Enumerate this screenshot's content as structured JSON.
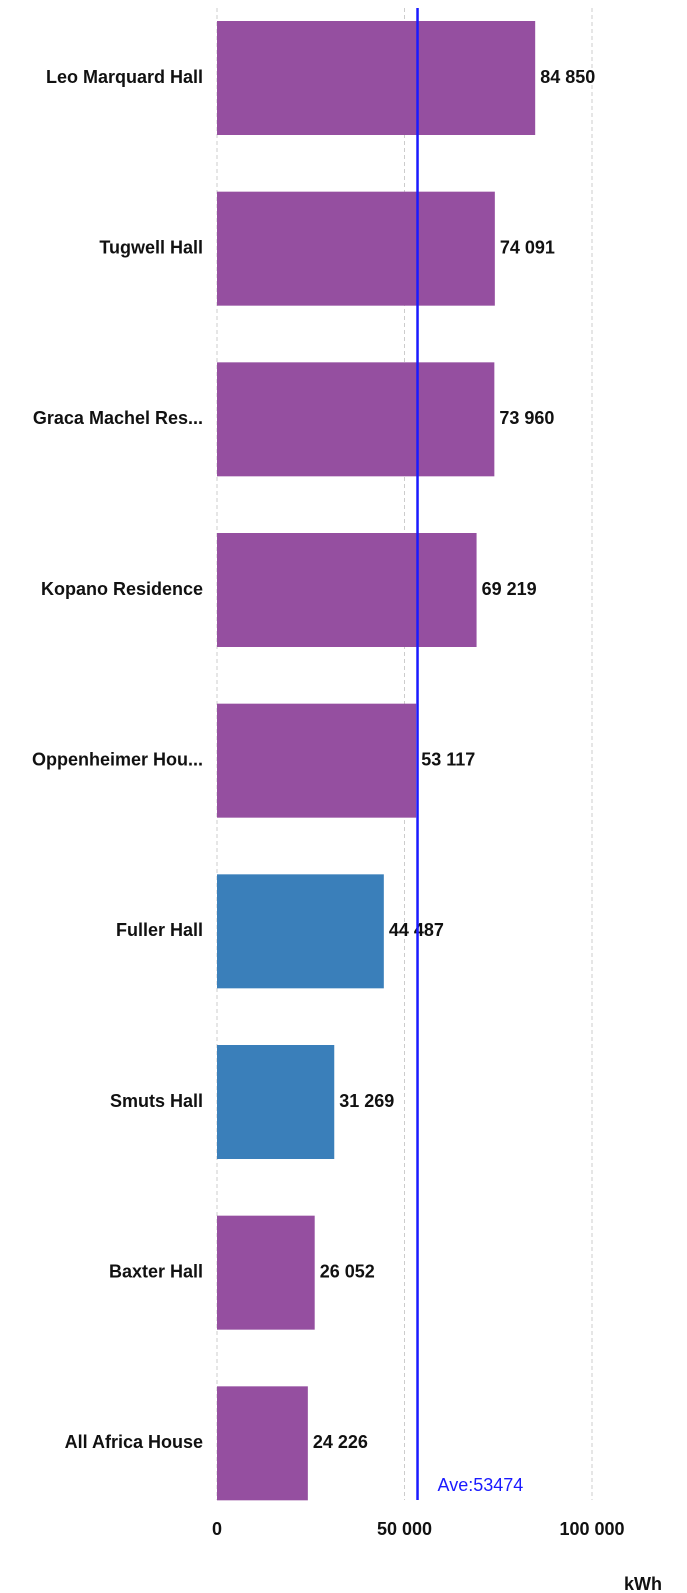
{
  "chart_data": {
    "type": "bar",
    "orientation": "horizontal",
    "categories": [
      "Leo Marquard Hall",
      "Tugwell Hall",
      "Graca Machel Res...",
      "Kopano Residence",
      "Oppenheimer Hou...",
      "Fuller Hall",
      "Smuts Hall",
      "Baxter Hall",
      "All Africa House"
    ],
    "values": [
      84850,
      74091,
      73960,
      69219,
      53117,
      44487,
      31269,
      26052,
      24226
    ],
    "value_labels": [
      "84 850",
      "74 091",
      "73 960",
      "69 219",
      "53 117",
      "44 487",
      "31 269",
      "26 052",
      "24 226"
    ],
    "colors": [
      "#954fa0",
      "#954fa0",
      "#954fa0",
      "#954fa0",
      "#954fa0",
      "#3a7fba",
      "#3a7fba",
      "#954fa0",
      "#954fa0"
    ],
    "xlim": [
      0,
      100000
    ],
    "xticks": [
      0,
      {
        "value": 50000,
        "label": "50 000"
      },
      {
        "value": 100000,
        "label": "100 000"
      }
    ],
    "x_label": "kWh",
    "grid": true,
    "average": {
      "value": 53474,
      "label": "Ave:53474",
      "color": "#1a1aff"
    }
  }
}
